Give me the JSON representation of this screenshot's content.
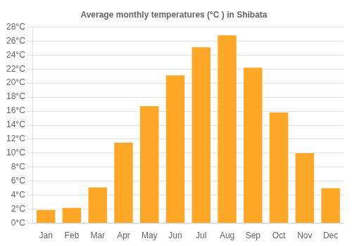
{
  "chart_data": {
    "type": "bar",
    "title": "Average monthly temperatures (°C ) in Shibata",
    "categories": [
      "Jan",
      "Feb",
      "Mar",
      "Apr",
      "May",
      "Jun",
      "Jul",
      "Aug",
      "Sep",
      "Oct",
      "Nov",
      "Dec"
    ],
    "values": [
      1.9,
      2.2,
      5.1,
      11.5,
      16.7,
      21.1,
      25.1,
      26.8,
      22.2,
      15.8,
      10.0,
      5.0
    ],
    "color": "#FFA726",
    "ylim": [
      0,
      28
    ],
    "yticks": [
      {
        "value": 0,
        "label": "0°C"
      },
      {
        "value": 2,
        "label": "2°C"
      },
      {
        "value": 4,
        "label": "4°C"
      },
      {
        "value": 6,
        "label": "6°C"
      },
      {
        "value": 8,
        "label": "8°C"
      },
      {
        "value": 10,
        "label": "10°C"
      },
      {
        "value": 12,
        "label": "12°C"
      },
      {
        "value": 14,
        "label": "14°C"
      },
      {
        "value": 16,
        "label": "16°C"
      },
      {
        "value": 18,
        "label": "18°C"
      },
      {
        "value": 20,
        "label": "20°C"
      },
      {
        "value": 22,
        "label": "22°C"
      },
      {
        "value": 24,
        "label": "24°C"
      },
      {
        "value": 26,
        "label": "26°C"
      },
      {
        "value": 28,
        "label": "28°C"
      }
    ],
    "grid": true
  }
}
